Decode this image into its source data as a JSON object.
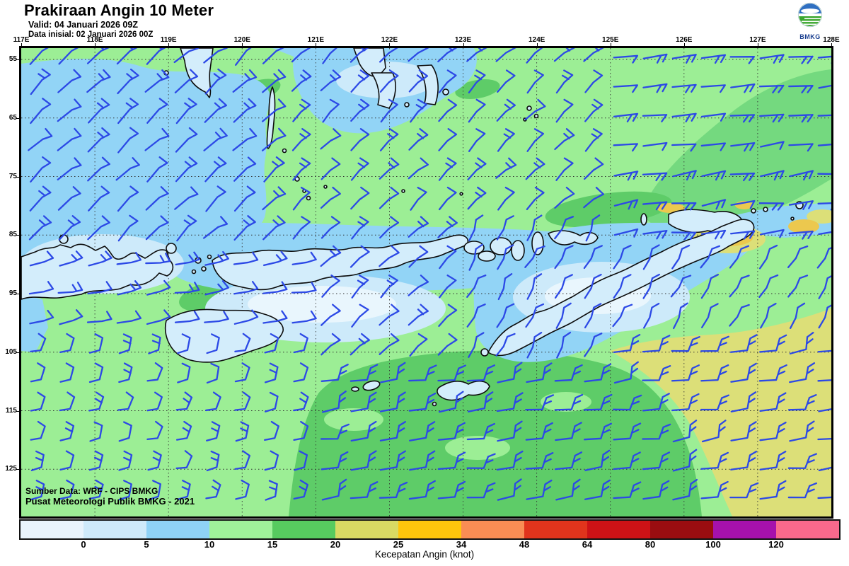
{
  "header": {
    "title": "Prakiraan Angin 10 Meter",
    "valid": "Valid: 04 Januari 2026 09Z",
    "init": "Data inisial: 02 Januari 2026 00Z"
  },
  "logo": {
    "label": "BMKG"
  },
  "axes": {
    "lon_labels": [
      "117E",
      "118E",
      "119E",
      "120E",
      "121E",
      "122E",
      "123E",
      "124E",
      "125E",
      "126E",
      "127E",
      "128E"
    ],
    "lat_labels": [
      "55",
      "65",
      "75",
      "85",
      "95",
      "105",
      "115",
      "125"
    ]
  },
  "map": {
    "credit1": "Sumber Data: WRF - CIPS BMKG",
    "credit2": "Pusat Meteorologi Publik BMKG - 2021"
  },
  "colorbar": {
    "caption": "Kecepatan Angin (knot)",
    "ticks": [
      "0",
      "5",
      "10",
      "15",
      "20",
      "25",
      "34",
      "48",
      "64",
      "80",
      "100",
      "120"
    ],
    "colors": [
      "#eaf4fc",
      "#cfeafa",
      "#8fd2f6",
      "#a0f29a",
      "#57cb5f",
      "#d9da63",
      "#fec50c",
      "#f98d54",
      "#e1341c",
      "#cd1216",
      "#9a0d10",
      "#a611ac",
      "#f9698c"
    ]
  },
  "barbs": {
    "color": "#2c49e6"
  },
  "sea_colors": {
    "calm_0_5": "#cdeafa",
    "light_5_10": "#92d4f6",
    "green_10_15": "#9cee95",
    "green_15_20": "#5ecc68",
    "khaki_20_25": "#dcdf78",
    "gold_25_34": "#ecc84e",
    "land_fill": "#d3edfb"
  },
  "chart_data": {
    "type": "heatmap",
    "title": "Prakiraan Angin 10 Meter",
    "variable": "kecepatan angin 10 m",
    "unit": "knot",
    "valid_time": "04 Januari 2026 09Z",
    "initial_time": "02 Januari 2026 00Z",
    "x_ticks": [
      "117E",
      "118E",
      "119E",
      "120E",
      "121E",
      "122E",
      "123E",
      "124E",
      "125E",
      "126E",
      "127E",
      "128E"
    ],
    "y_ticks": [
      "55",
      "65",
      "75",
      "85",
      "95",
      "105",
      "115",
      "125"
    ],
    "scale_breaks_knots": [
      0,
      5,
      10,
      15,
      20,
      25,
      34,
      48,
      64,
      80,
      100,
      120
    ],
    "legend_position": "bottom",
    "regions": [
      {
        "area": "northwest seas (117-121E, 5.5-9S)",
        "speed_knots": "5-10"
      },
      {
        "area": "band along island chain and around Timor",
        "speed_knots": "0-10"
      },
      {
        "area": "central and northern seas",
        "speed_knots": "10-15"
      },
      {
        "area": "northeast corner band (125-128E, 5.5-8.5S)",
        "speed_knots": "15-20"
      },
      {
        "area": "south-central waters south of Sumba-Timor",
        "speed_knots": "15-20"
      },
      {
        "area": "southeast corner (124-128E, 10.5-13S)",
        "speed_knots": "20-25"
      },
      {
        "area": "small patches near Wetar and 128E 8-9S",
        "speed_knots": "25-34"
      }
    ]
  }
}
